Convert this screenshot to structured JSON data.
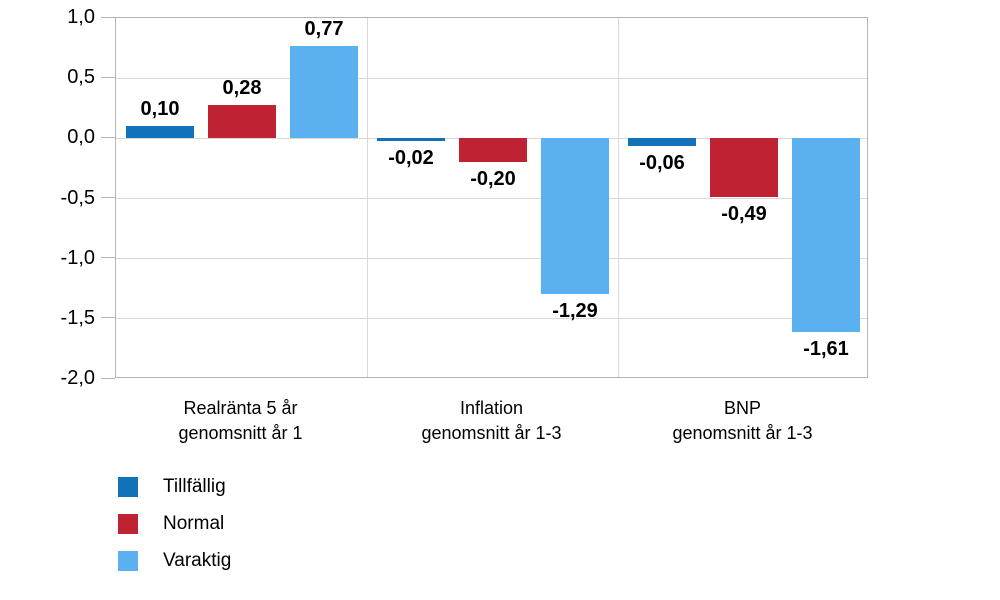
{
  "chart_data": {
    "type": "bar",
    "title": "",
    "xlabel": "",
    "ylabel": "",
    "categories": [
      {
        "line1": "Realränta 5 år",
        "line2": "genomsnitt år 1"
      },
      {
        "line1": "Inflation",
        "line2": "genomsnitt år 1-3"
      },
      {
        "line1": "BNP",
        "line2": "genomsnitt år 1-3"
      }
    ],
    "series": [
      {
        "name": "Tillfällig",
        "color": "#1172BA",
        "values": [
          0.1,
          -0.02,
          -0.06
        ],
        "value_labels": [
          "0,10",
          "-0,02",
          "-0,06"
        ]
      },
      {
        "name": "Normal",
        "color": "#BE2233",
        "values": [
          0.28,
          -0.2,
          -0.49
        ],
        "value_labels": [
          "0,28",
          "-0,20",
          "-0,49"
        ]
      },
      {
        "name": "Varaktig",
        "color": "#5BB0F0",
        "values": [
          0.77,
          -1.29,
          -1.61
        ],
        "value_labels": [
          "0,77",
          "-1,29",
          "-1,61"
        ]
      }
    ],
    "ylim": [
      -2.0,
      1.0
    ],
    "ytick_step": 0.5,
    "ytick_labels": [
      "1,0",
      "0,5",
      "0,0",
      "-0,5",
      "-1,0",
      "-1,5",
      "-2,0"
    ],
    "grid": true,
    "legend_position": "bottom-left",
    "colors": {
      "gridline": "#d9d9d9",
      "frame": "#b3b3b3",
      "text": "#000000",
      "background": "#ffffff"
    }
  }
}
